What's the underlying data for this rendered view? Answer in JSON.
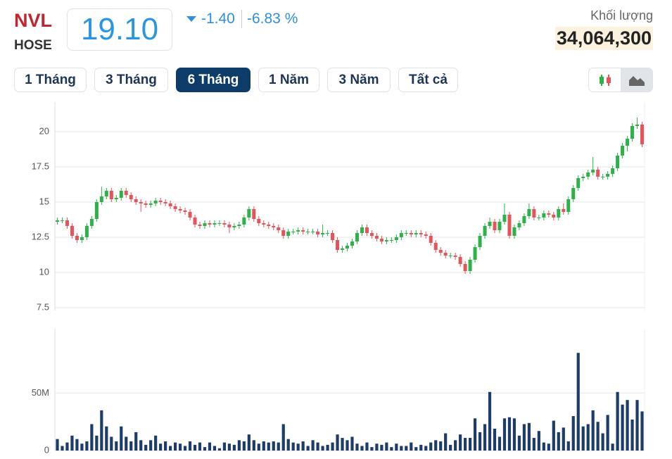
{
  "header": {
    "symbol": "NVL",
    "exchange": "HOSE",
    "price": "19.10",
    "change": "-1.40",
    "change_pct": "-6.83 %",
    "volume_label": "Khối lượng",
    "volume": "34,064,300"
  },
  "buttons": [
    "1 Tháng",
    "3 Tháng",
    "6 Tháng",
    "1 Năm",
    "3 Năm",
    "Tất cả"
  ],
  "chart_data": [
    {
      "type": "candlestick",
      "up_color": "#2eb14a",
      "down_color": "#e4545b",
      "grid": true,
      "ylim": [
        7.3,
        22.1
      ],
      "yticks": [
        7.5,
        10,
        12.5,
        15,
        17.5,
        20
      ],
      "open": [
        13.6,
        13.7,
        13.7,
        13.3,
        12.6,
        12.3,
        12.5,
        13.3,
        13.8,
        15.0,
        15.4,
        15.8,
        15.2,
        15.3,
        15.8,
        15.5,
        15.2,
        15.0,
        14.9,
        14.8,
        14.9,
        15.1,
        15.0,
        14.9,
        14.7,
        14.5,
        14.4,
        14.3,
        13.9,
        13.4,
        13.3,
        13.5,
        13.4,
        13.5,
        13.5,
        13.4,
        13.2,
        13.3,
        13.4,
        13.9,
        14.5,
        13.8,
        13.5,
        13.4,
        13.3,
        13.2,
        13.0,
        12.6,
        12.9,
        12.9,
        13.0,
        12.9,
        12.9,
        12.9,
        12.7,
        12.8,
        12.8,
        12.3,
        11.6,
        11.7,
        11.9,
        12.2,
        12.8,
        13.2,
        12.8,
        12.6,
        12.4,
        12.2,
        12.3,
        12.3,
        12.5,
        12.8,
        12.8,
        12.7,
        12.8,
        12.7,
        12.6,
        12.1,
        11.6,
        11.4,
        11.2,
        11.2,
        11.1,
        10.6,
        10.1,
        10.9,
        11.8,
        12.6,
        13.3,
        13.6,
        13.0,
        13.6,
        14.1,
        12.6,
        13.2,
        13.5,
        14.0,
        14.5,
        13.9,
        13.9,
        14.2,
        14.1,
        13.9,
        14.5,
        14.3,
        15.2,
        16.0,
        16.7,
        16.8,
        17.1,
        17.3,
        16.8,
        16.8,
        17.0,
        17.4,
        18.3,
        19.0,
        19.5,
        20.4,
        20.5
      ],
      "high": [
        13.9,
        13.9,
        13.9,
        13.5,
        12.8,
        12.7,
        13.5,
        14.0,
        15.2,
        16.1,
        16.0,
        16.0,
        15.5,
        16.0,
        16.0,
        15.7,
        15.4,
        15.2,
        15.1,
        15.1,
        15.3,
        15.3,
        15.2,
        15.1,
        14.9,
        14.7,
        14.6,
        14.5,
        14.1,
        13.6,
        13.7,
        13.7,
        13.7,
        13.7,
        13.7,
        13.6,
        13.5,
        13.6,
        14.1,
        14.7,
        14.7,
        14.0,
        13.7,
        13.6,
        13.5,
        13.4,
        13.2,
        13.1,
        13.1,
        13.2,
        13.2,
        13.1,
        13.1,
        13.1,
        13.4,
        13.0,
        13.0,
        12.5,
        11.9,
        12.1,
        12.4,
        13.0,
        13.4,
        13.4,
        13.0,
        12.8,
        12.6,
        12.5,
        12.5,
        12.7,
        13.0,
        13.0,
        13.0,
        13.0,
        13.0,
        12.9,
        12.8,
        12.3,
        11.8,
        11.6,
        11.4,
        11.4,
        11.3,
        10.8,
        11.1,
        12.0,
        12.8,
        13.5,
        13.9,
        13.8,
        13.8,
        14.9,
        14.3,
        13.4,
        13.7,
        14.2,
        14.9,
        14.7,
        14.1,
        14.4,
        14.4,
        14.3,
        14.7,
        14.9,
        15.4,
        16.2,
        16.9,
        17.0,
        17.3,
        18.2,
        17.5,
        17.0,
        17.2,
        17.6,
        18.5,
        19.2,
        19.7,
        20.6,
        21.0,
        20.7
      ],
      "low": [
        13.4,
        13.5,
        13.1,
        12.4,
        12.1,
        12.1,
        12.3,
        13.1,
        13.6,
        14.8,
        15.2,
        15.0,
        15.0,
        15.1,
        15.3,
        15.0,
        14.8,
        14.3,
        14.6,
        14.6,
        14.7,
        14.8,
        14.7,
        14.5,
        14.3,
        14.2,
        14.1,
        13.7,
        13.2,
        13.1,
        13.1,
        13.2,
        13.2,
        13.3,
        13.2,
        12.8,
        13.0,
        13.1,
        13.2,
        13.7,
        13.6,
        13.3,
        13.2,
        13.1,
        13.0,
        12.8,
        12.4,
        12.4,
        12.7,
        12.7,
        12.7,
        12.7,
        12.7,
        12.5,
        12.5,
        12.6,
        12.1,
        11.4,
        11.4,
        11.5,
        11.7,
        12.0,
        12.6,
        12.6,
        12.4,
        12.2,
        12.0,
        12.0,
        12.1,
        12.1,
        12.3,
        12.6,
        12.5,
        12.5,
        12.5,
        12.4,
        11.9,
        11.4,
        11.2,
        11.0,
        11.0,
        10.9,
        10.4,
        9.9,
        9.9,
        10.7,
        11.6,
        12.4,
        13.1,
        12.8,
        12.8,
        13.4,
        12.4,
        12.4,
        13.0,
        13.3,
        13.8,
        13.7,
        13.7,
        13.7,
        13.9,
        13.7,
        13.7,
        14.1,
        14.1,
        15.0,
        15.8,
        16.5,
        16.6,
        16.9,
        16.6,
        16.6,
        16.6,
        16.8,
        17.2,
        18.1,
        18.6,
        19.3,
        20.2,
        18.9
      ],
      "close": [
        13.7,
        13.7,
        13.3,
        12.6,
        12.3,
        12.5,
        13.3,
        13.8,
        15.0,
        15.4,
        15.8,
        15.2,
        15.3,
        15.8,
        15.5,
        15.2,
        15.0,
        14.9,
        14.8,
        14.9,
        15.1,
        15.0,
        14.9,
        14.7,
        14.5,
        14.4,
        14.3,
        13.9,
        13.4,
        13.3,
        13.5,
        13.4,
        13.5,
        13.5,
        13.4,
        13.2,
        13.3,
        13.4,
        13.9,
        14.5,
        13.8,
        13.5,
        13.4,
        13.3,
        13.2,
        13.0,
        12.6,
        12.9,
        12.9,
        13.0,
        12.9,
        12.9,
        12.9,
        12.7,
        12.8,
        12.8,
        12.3,
        11.6,
        11.7,
        11.9,
        12.2,
        12.8,
        13.2,
        12.8,
        12.6,
        12.4,
        12.2,
        12.3,
        12.3,
        12.5,
        12.8,
        12.8,
        12.7,
        12.8,
        12.7,
        12.6,
        12.1,
        11.6,
        11.4,
        11.2,
        11.2,
        11.1,
        10.6,
        10.1,
        10.9,
        11.8,
        12.6,
        13.3,
        13.6,
        13.0,
        13.6,
        14.1,
        12.6,
        13.2,
        13.5,
        14.0,
        14.5,
        13.9,
        13.9,
        14.2,
        14.1,
        13.9,
        14.5,
        14.3,
        15.2,
        16.0,
        16.7,
        16.8,
        17.1,
        17.3,
        16.8,
        16.8,
        17.0,
        17.4,
        18.3,
        19.0,
        19.5,
        20.4,
        20.5,
        19.1
      ]
    },
    {
      "type": "bar",
      "color": "#1d3c6a",
      "grid": true,
      "ylim": [
        0,
        106
      ],
      "yticks": [
        0,
        {
          "value": 50,
          "label": "50M"
        }
      ],
      "values": [
        10,
        4,
        7,
        13,
        10,
        6,
        8,
        23,
        13,
        35,
        21,
        12,
        8,
        21,
        12,
        8,
        16,
        9,
        5,
        9,
        13,
        6,
        8,
        4,
        7,
        6,
        4,
        8,
        5,
        7,
        3,
        7,
        4,
        2,
        7,
        6,
        5,
        9,
        8,
        14,
        9,
        6,
        8,
        7,
        8,
        7,
        23,
        10,
        7,
        6,
        8,
        4,
        9,
        7,
        4,
        5,
        7,
        14,
        11,
        9,
        12,
        6,
        4,
        7,
        3,
        6,
        5,
        7,
        3,
        6,
        4,
        4,
        7,
        3,
        5,
        4,
        7,
        9,
        8,
        15,
        5,
        9,
        14,
        11,
        11,
        28,
        16,
        23,
        51,
        19,
        12,
        28,
        29,
        28,
        13,
        23,
        24,
        11,
        17,
        7,
        6,
        26,
        16,
        20,
        8,
        30,
        85,
        21,
        23,
        35,
        25,
        15,
        31,
        6,
        51,
        40,
        44,
        27,
        44,
        34.0643
      ]
    }
  ]
}
